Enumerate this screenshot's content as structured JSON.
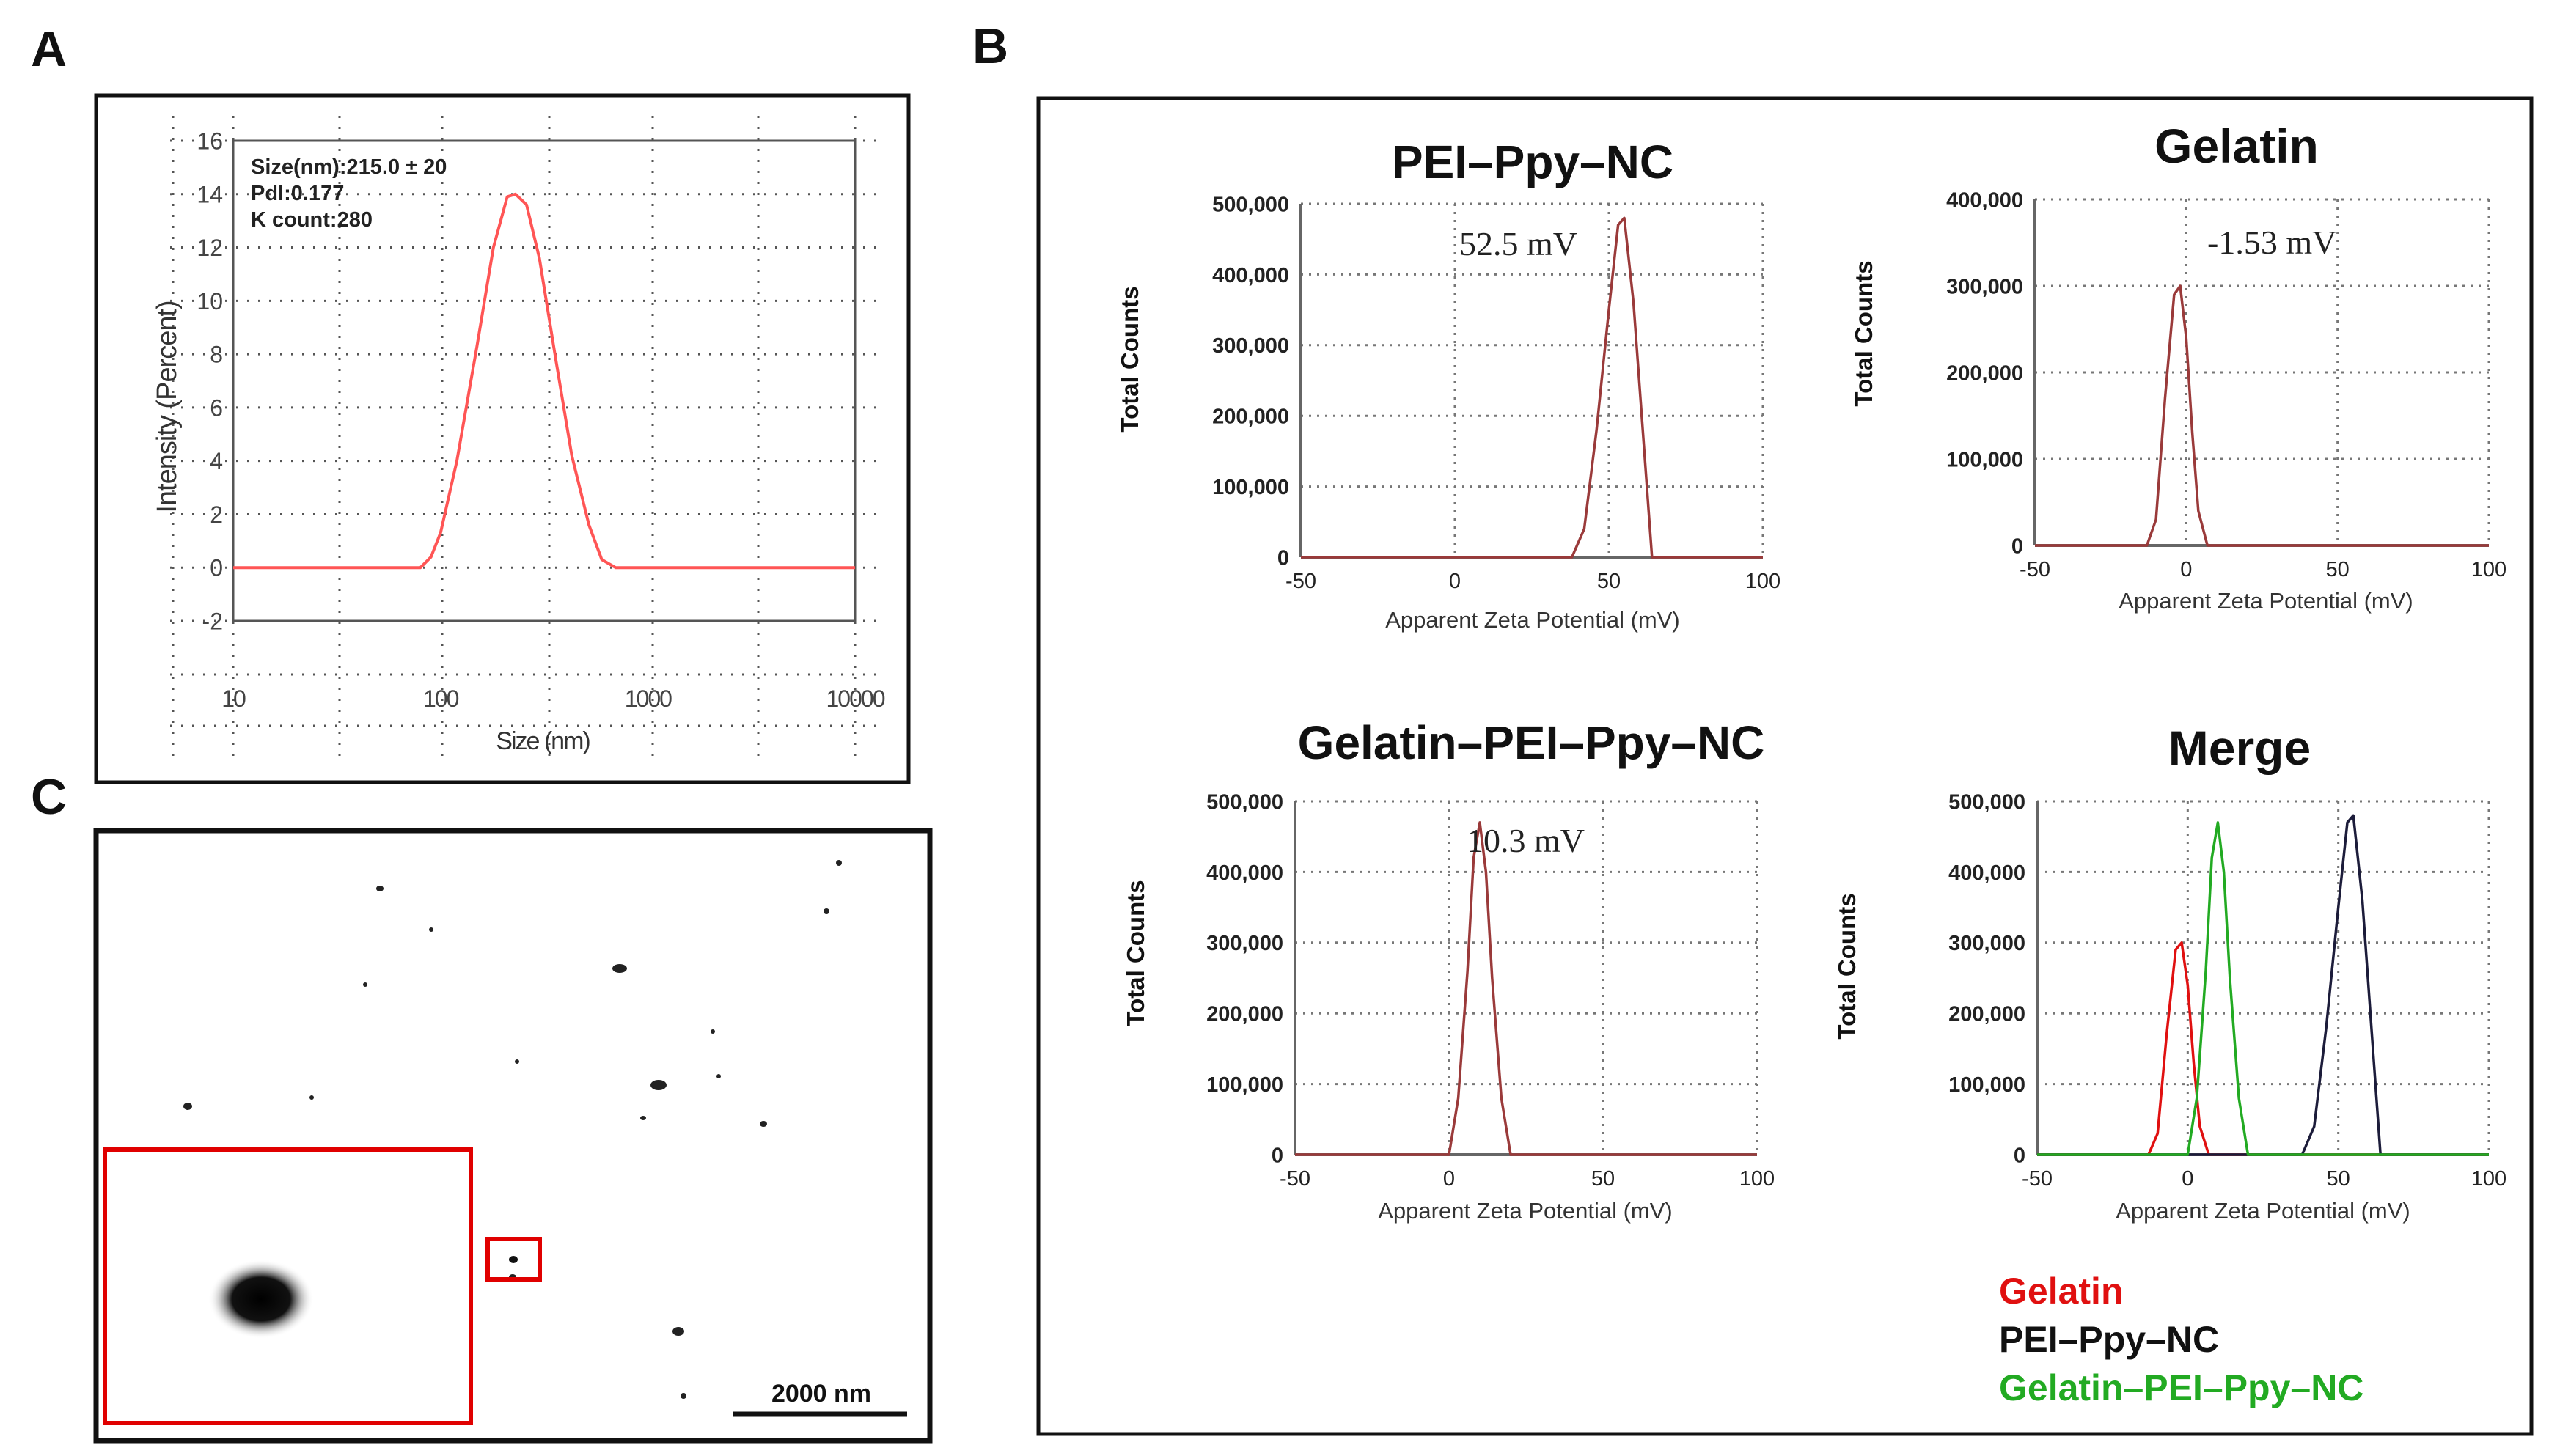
{
  "panel_labels": {
    "a": "A",
    "b": "B",
    "c": "C"
  },
  "colors": {
    "gelatin": "#e01010",
    "pei": "#1c1c3a",
    "gpp": "#22aa22",
    "zeta_trace": "#9a3a3a",
    "dls_curve": "#ff5555",
    "box": "#e00000"
  },
  "panel_a": {
    "annotation": [
      "Size(nm):215.0 ± 20",
      "Pdl:0.177",
      "K count:280"
    ]
  },
  "panel_c": {
    "scale_bar_label": "2000 nm"
  },
  "legend": {
    "items": [
      {
        "label": "Gelatin",
        "color": "#e01010"
      },
      {
        "label": "PEI–Ppy–NC",
        "color": "#111111"
      },
      {
        "label": "Gelatin–PEI–Ppy–NC",
        "color": "#22aa22"
      }
    ]
  },
  "chart_data": [
    {
      "id": "dls",
      "type": "line",
      "xlabel": "Size (nm)",
      "ylabel": "Intensity (Percent)",
      "xscale": "log",
      "xlim": [
        10,
        10000
      ],
      "ylim": [
        -2,
        16
      ],
      "xticks": [
        10,
        100,
        1000,
        10000
      ],
      "xtick_labels": [
        "10",
        "100",
        "1000",
        "10000"
      ],
      "yticks": [
        -2,
        0,
        2,
        4,
        6,
        8,
        10,
        12,
        14,
        16
      ],
      "ytick_labels": [
        "-2",
        "0",
        "2",
        "4",
        "6",
        "8",
        "10",
        "12",
        "14",
        "16"
      ],
      "grid": true,
      "series": [
        {
          "color": "#ff5555",
          "x": [
            10,
            80,
            90,
            100,
            120,
            150,
            180,
            210,
            230,
            260,
            300,
            360,
            430,
            520,
            600,
            700,
            800,
            1000,
            10000
          ],
          "y": [
            0,
            0,
            0.4,
            1.3,
            4,
            8.3,
            12,
            13.9,
            14,
            13.6,
            11.6,
            7.8,
            4.2,
            1.6,
            0.3,
            0,
            0,
            0,
            0
          ]
        }
      ]
    },
    {
      "id": "z1",
      "type": "line",
      "title": "PEI–Ppy–NC",
      "annotation": "52.5 mV",
      "xlabel": "Apparent Zeta Potential (mV)",
      "ylabel": "Total Counts",
      "xlim": [
        -50,
        100
      ],
      "ylim": [
        0,
        500000
      ],
      "xticks": [
        -50,
        0,
        50,
        100
      ],
      "xtick_labels": [
        "-50",
        "0",
        "50",
        "100"
      ],
      "yticks": [
        0,
        100000,
        200000,
        300000,
        400000,
        500000
      ],
      "ytick_labels": [
        "0",
        "100,000",
        "200,000",
        "300,000",
        "400,000",
        "500,000"
      ],
      "grid": true,
      "series": [
        {
          "color": "#9a3a3a",
          "x": [
            -50,
            38,
            42,
            46,
            50,
            53,
            55,
            58,
            61,
            64,
            100
          ],
          "y": [
            0,
            0,
            40000,
            180000,
            350000,
            470000,
            480000,
            360000,
            180000,
            0,
            0
          ]
        }
      ]
    },
    {
      "id": "z2",
      "type": "line",
      "title": "Gelatin",
      "annotation": "-1.53 mV",
      "xlabel": "Apparent Zeta Potential (mV)",
      "ylabel": "Total Counts",
      "xlim": [
        -50,
        100
      ],
      "ylim": [
        0,
        400000
      ],
      "xticks": [
        -50,
        0,
        50,
        100
      ],
      "xtick_labels": [
        "-50",
        "0",
        "50",
        "100"
      ],
      "yticks": [
        0,
        100000,
        200000,
        300000,
        400000
      ],
      "ytick_labels": [
        "0",
        "100,000",
        "200,000",
        "300,000",
        "400,000"
      ],
      "grid": true,
      "series": [
        {
          "color": "#9a3a3a",
          "x": [
            -50,
            -13,
            -10,
            -7,
            -4,
            -2,
            0,
            2,
            4,
            7,
            100
          ],
          "y": [
            0,
            0,
            30000,
            170000,
            290000,
            300000,
            240000,
            130000,
            40000,
            0,
            0
          ]
        }
      ]
    },
    {
      "id": "z3",
      "type": "line",
      "title": "Gelatin–PEI–Ppy–NC",
      "annotation": "10.3 mV",
      "xlabel": "Apparent Zeta Potential (mV)",
      "ylabel": "Total Counts",
      "xlim": [
        -50,
        100
      ],
      "ylim": [
        0,
        500000
      ],
      "xticks": [
        -50,
        0,
        50,
        100
      ],
      "xtick_labels": [
        "-50",
        "0",
        "50",
        "100"
      ],
      "yticks": [
        0,
        100000,
        200000,
        300000,
        400000,
        500000
      ],
      "ytick_labels": [
        "0",
        "100,000",
        "200,000",
        "300,000",
        "400,000",
        "500,000"
      ],
      "grid": true,
      "series": [
        {
          "color": "#9a3a3a",
          "x": [
            -50,
            0,
            3,
            6,
            8,
            10,
            12,
            14,
            17,
            20,
            100
          ],
          "y": [
            0,
            0,
            80000,
            260000,
            420000,
            470000,
            400000,
            250000,
            80000,
            0,
            0
          ]
        }
      ]
    },
    {
      "id": "z4",
      "type": "line",
      "title": "Merge",
      "xlabel": "Apparent Zeta Potential (mV)",
      "ylabel": "Total Counts",
      "xlim": [
        -50,
        100
      ],
      "ylim": [
        0,
        500000
      ],
      "xticks": [
        -50,
        0,
        50,
        100
      ],
      "xtick_labels": [
        "-50",
        "0",
        "50",
        "100"
      ],
      "yticks": [
        0,
        100000,
        200000,
        300000,
        400000,
        500000
      ],
      "ytick_labels": [
        "0",
        "100,000",
        "200,000",
        "300,000",
        "400,000",
        "500,000"
      ],
      "grid": true,
      "series": [
        {
          "name": "Gelatin",
          "color": "#e01010",
          "x": [
            -50,
            -13,
            -10,
            -7,
            -4,
            -2,
            0,
            2,
            4,
            7,
            100
          ],
          "y": [
            0,
            0,
            30000,
            170000,
            290000,
            300000,
            240000,
            130000,
            40000,
            0,
            0
          ]
        },
        {
          "name": "PEI–Ppy–NC",
          "color": "#1c1c3a",
          "x": [
            -50,
            38,
            42,
            46,
            50,
            53,
            55,
            58,
            61,
            64,
            100
          ],
          "y": [
            0,
            0,
            40000,
            180000,
            350000,
            470000,
            480000,
            360000,
            180000,
            0,
            0
          ]
        },
        {
          "name": "Gelatin–PEI–Ppy–NC",
          "color": "#22aa22",
          "x": [
            -50,
            0,
            3,
            6,
            8,
            10,
            12,
            14,
            17,
            20,
            100
          ],
          "y": [
            0,
            0,
            80000,
            260000,
            420000,
            470000,
            400000,
            250000,
            80000,
            0,
            0
          ]
        }
      ]
    }
  ]
}
